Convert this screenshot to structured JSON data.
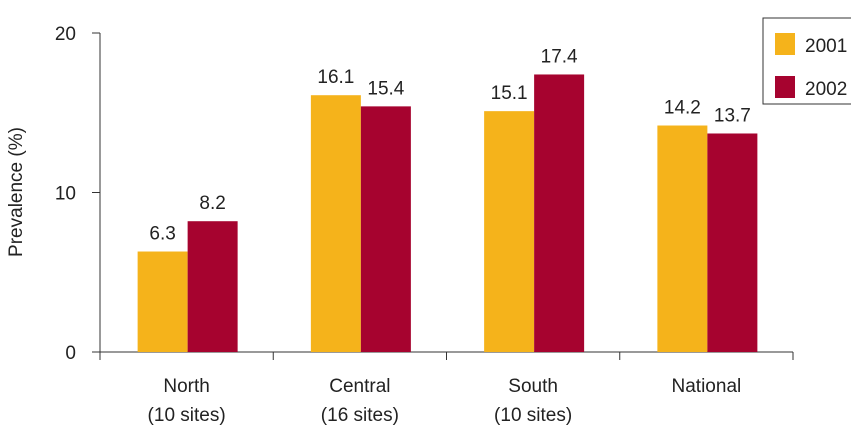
{
  "chart_data": {
    "type": "bar",
    "ylabel": "Prevalence (%)",
    "xlabel": "",
    "ylim": [
      0,
      20
    ],
    "yticks": [
      0,
      10,
      20
    ],
    "grid": false,
    "legend_position": "top-right",
    "categories": [
      [
        "North",
        "(10 sites)"
      ],
      [
        "Central",
        "(16 sites)"
      ],
      [
        "South",
        "(10 sites)"
      ],
      [
        "National",
        ""
      ]
    ],
    "series": [
      {
        "name": "2001",
        "color": "#F5B31B",
        "values": [
          6.3,
          16.1,
          15.1,
          14.2
        ]
      },
      {
        "name": "2002",
        "color": "#A6032F",
        "values": [
          8.2,
          15.4,
          17.4,
          13.7
        ]
      }
    ]
  }
}
